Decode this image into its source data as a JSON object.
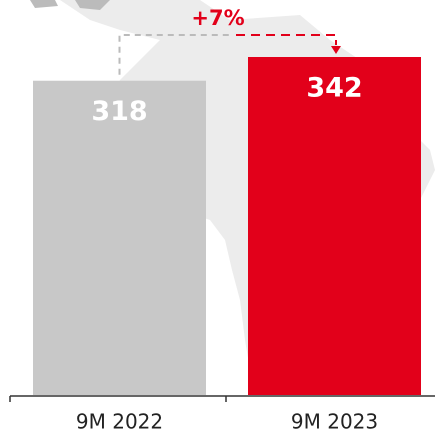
{
  "chart_data": {
    "type": "bar",
    "categories": [
      "9M 2022",
      "9M 2023"
    ],
    "values": [
      318,
      342
    ],
    "colors": [
      "#c8c8c8",
      "#e2001a"
    ],
    "ylim": [
      0,
      342
    ],
    "annotation": "+7%"
  }
}
